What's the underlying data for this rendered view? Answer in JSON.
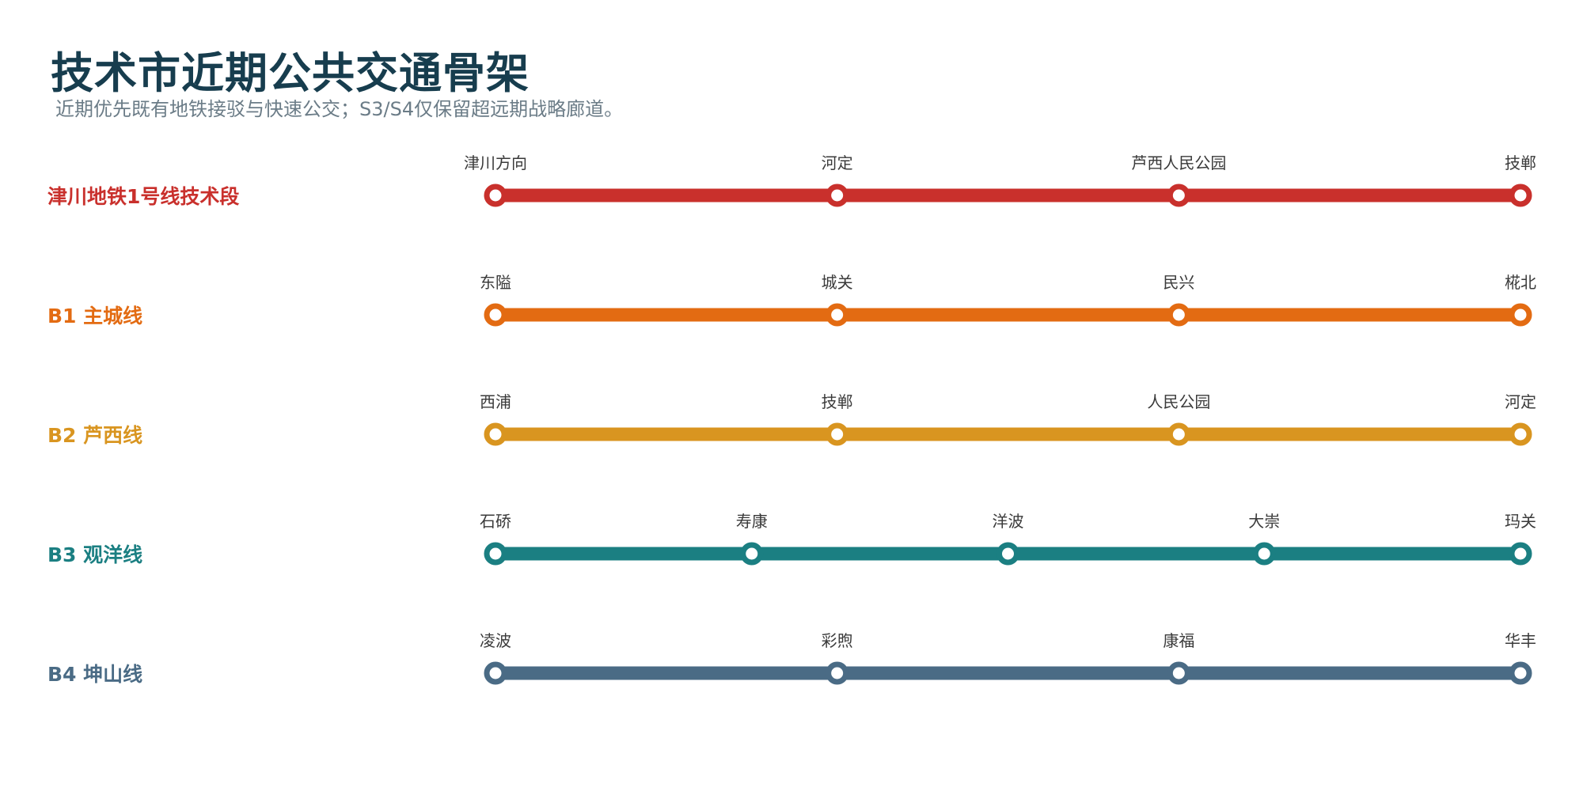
{
  "header": {
    "title": "技术市近期公共交通骨架",
    "subtitle": "近期优先既有地铁接驳与快速公交；S3/S4仅保留超远期战略廊道。"
  },
  "lines": [
    {
      "name": "津川地铁1号线技术段",
      "color": "#c9302c",
      "stations": [
        "津川方向",
        "河定",
        "芦西人民公园",
        "技郸"
      ]
    },
    {
      "name": "B1 主城线",
      "color": "#e36b12",
      "stations": [
        "东隘",
        "城关",
        "民兴",
        "椛北"
      ]
    },
    {
      "name": "B2 芦西线",
      "color": "#d99520",
      "stations": [
        "西浦",
        "技郸",
        "人民公园",
        "河定"
      ]
    },
    {
      "name": "B3 观洋线",
      "color": "#1b7f82",
      "stations": [
        "石硚",
        "寿康",
        "洋波",
        "大崇",
        "玛关"
      ]
    },
    {
      "name": "B4 坤山线",
      "color": "#4a6b85",
      "stations": [
        "凌波",
        "彩煦",
        "康福",
        "华丰"
      ]
    }
  ]
}
